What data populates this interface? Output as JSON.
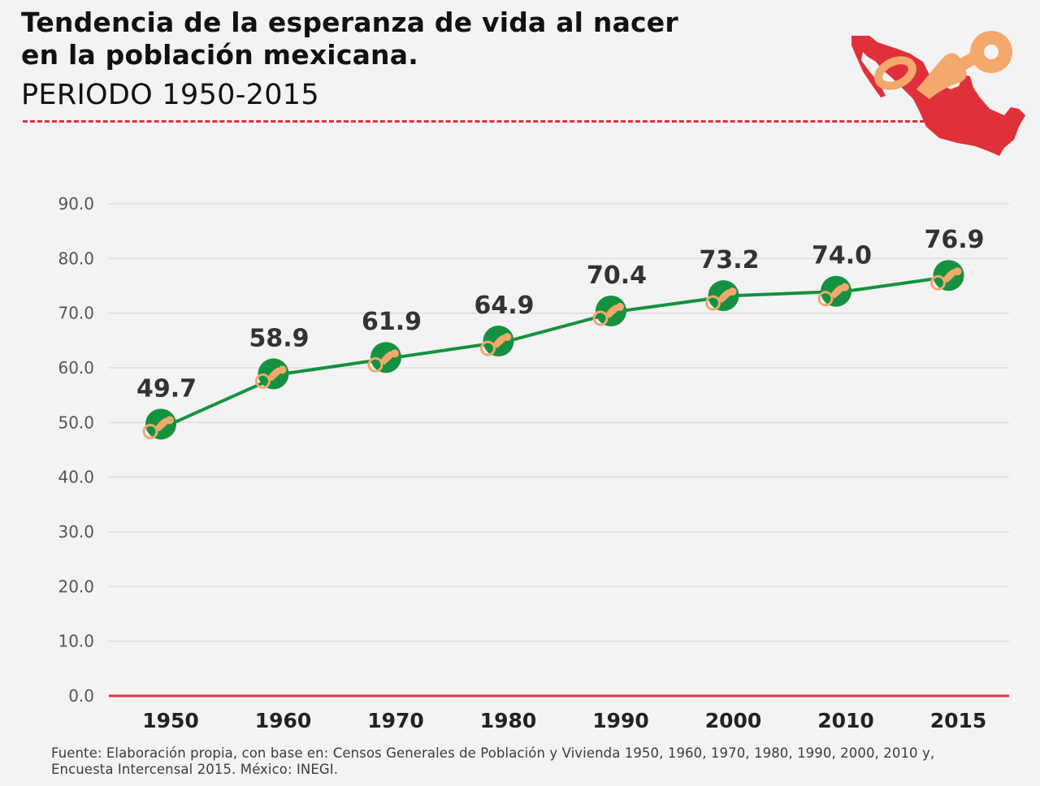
{
  "header": {
    "title_line1": "Tendencia de la esperanza de vida al nacer",
    "title_line2": "en la población mexicana.",
    "subtitle": "PERIODO 1950-2015"
  },
  "source": {
    "line1": "Fuente: Elaboración propia, con base en: Censos Generales de Población y Vivienda 1950, 1960, 1970, 1980, 1990, 2000, 2010 y,",
    "line2": "Encuesta Intercensal 2015. México: INEGI."
  },
  "logo": {
    "icon": "mexico-map-pacifier-icon",
    "map_color": "#e0313b",
    "pacifier_color": "#f3a86c"
  },
  "colors": {
    "line": "#149240",
    "marker": "#149240",
    "marker_icon": "#f3a86c",
    "baseline": "#e0313b",
    "accent_rule": "#e0313b",
    "grid": "#dcdcdc"
  },
  "chart_data": {
    "type": "line",
    "title": "Tendencia de la esperanza de vida al nacer en la población mexicana.",
    "subtitle": "PERIODO 1950-2015",
    "xlabel": "",
    "ylabel": "",
    "categories": [
      "1950",
      "1960",
      "1970",
      "1980",
      "1990",
      "2000",
      "2010",
      "2015"
    ],
    "series": [
      {
        "values": [
          49.7,
          58.9,
          61.9,
          64.9,
          70.4,
          73.2,
          74.0,
          76.9
        ]
      }
    ],
    "value_labels": [
      "49.7",
      "58.9",
      "61.9",
      "64.9",
      "70.4",
      "73.2",
      "74.0",
      "76.9"
    ],
    "ylim": [
      0,
      90
    ],
    "yticks": [
      "0.0",
      "10.0",
      "20.0",
      "30.0",
      "40.0",
      "50.0",
      "60.0",
      "70.0",
      "80.0",
      "90.0"
    ],
    "grid": true,
    "legend": "none"
  }
}
